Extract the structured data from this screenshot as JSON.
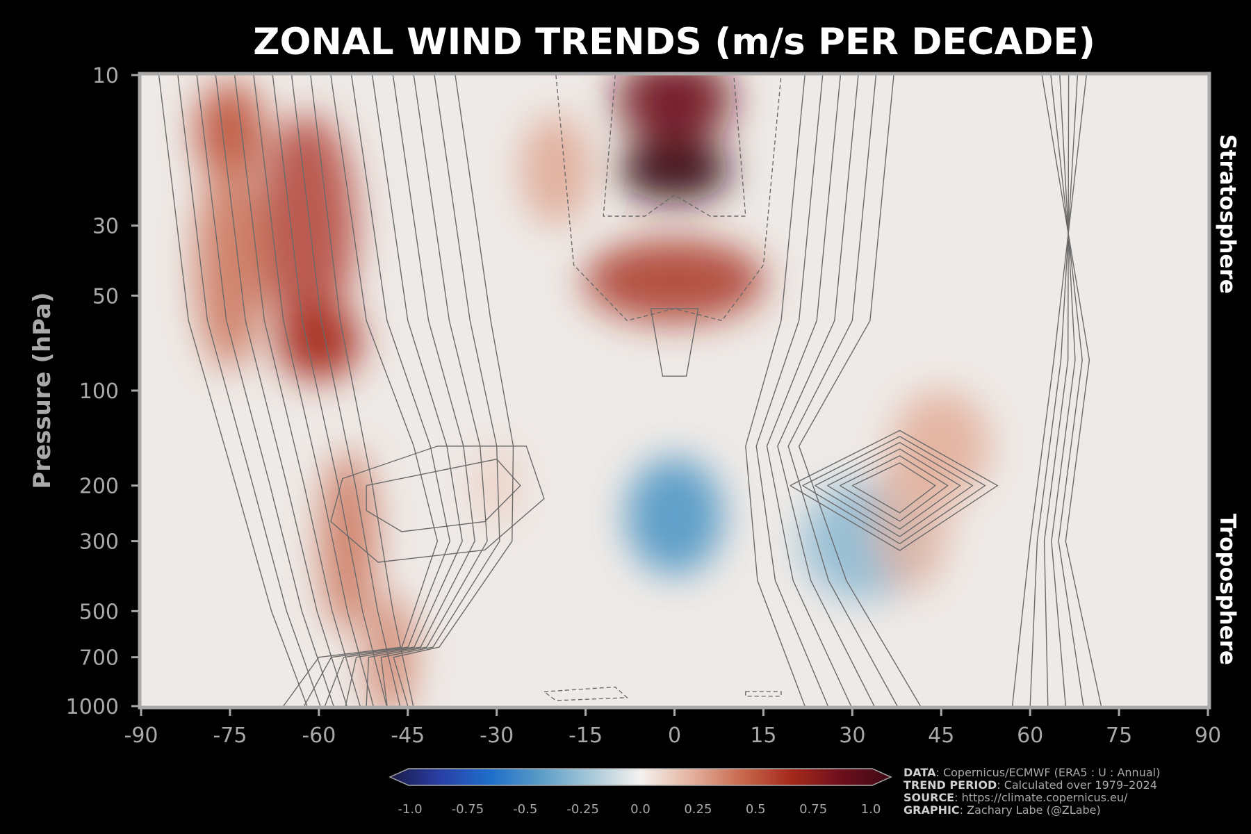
{
  "chart_data": {
    "type": "heatmap",
    "title": "ZONAL WIND TRENDS (m/s PER DECADE)",
    "xlabel": "",
    "ylabel": "Pressure (hPa)",
    "x_ticks": [
      "-90",
      "-75",
      "-60",
      "-45",
      "-30",
      "-15",
      "0",
      "15",
      "30",
      "45",
      "60",
      "75",
      "90"
    ],
    "xlim": [
      -90,
      90
    ],
    "y_ticks": [
      "10",
      "30",
      "50",
      "100",
      "200",
      "300",
      "500",
      "700",
      "1000"
    ],
    "ylim": [
      1000,
      10
    ],
    "y_scale": "log",
    "layer_labels": [
      "Stratosphere",
      "Troposphere"
    ],
    "colorbar": {
      "ticks": [
        "-1.0",
        "-0.75",
        "-0.5",
        "-0.25",
        "0.0",
        "0.25",
        "0.5",
        "0.75",
        "1.0"
      ],
      "range": [
        -1.0,
        1.0
      ],
      "extend": "both",
      "colors": [
        "#1b1b46",
        "#2a3fa6",
        "#1e6ec9",
        "#5a9cc7",
        "#a7c8d8",
        "#f4f1ee",
        "#e4b3a0",
        "#c96a4f",
        "#a52a1c",
        "#6e0f1d",
        "#3c0a14"
      ]
    },
    "trend_features": [
      {
        "lat": 0,
        "pressure_hPa": 20,
        "trend": 1.0
      },
      {
        "lat": -60,
        "pressure_hPa": 70,
        "trend": 0.6
      },
      {
        "lat": -75,
        "pressure_hPa": 15,
        "trend": 0.45
      },
      {
        "lat": 0,
        "pressure_hPa": 250,
        "trend": -0.4
      },
      {
        "lat": 32,
        "pressure_hPa": 300,
        "trend": -0.25
      },
      {
        "lat": 45,
        "pressure_hPa": 150,
        "trend": 0.2
      },
      {
        "lat": -30,
        "pressure_hPa": 200,
        "trend": 0.1
      }
    ],
    "contours": "climatological zonal wind (grey lines, dashed = easterly)"
  },
  "credits": [
    {
      "key": "DATA",
      "text": ": Copernicus/ECMWF (ERA5 : U : Annual)"
    },
    {
      "key": "TREND PERIOD",
      "text": ": Calculated over 1979–2024"
    },
    {
      "key": "SOURCE",
      "text": ": https://climate.copernicus.eu/"
    },
    {
      "key": "GRAPHIC",
      "text": ": Zachary Labe (@ZLabe)"
    }
  ]
}
